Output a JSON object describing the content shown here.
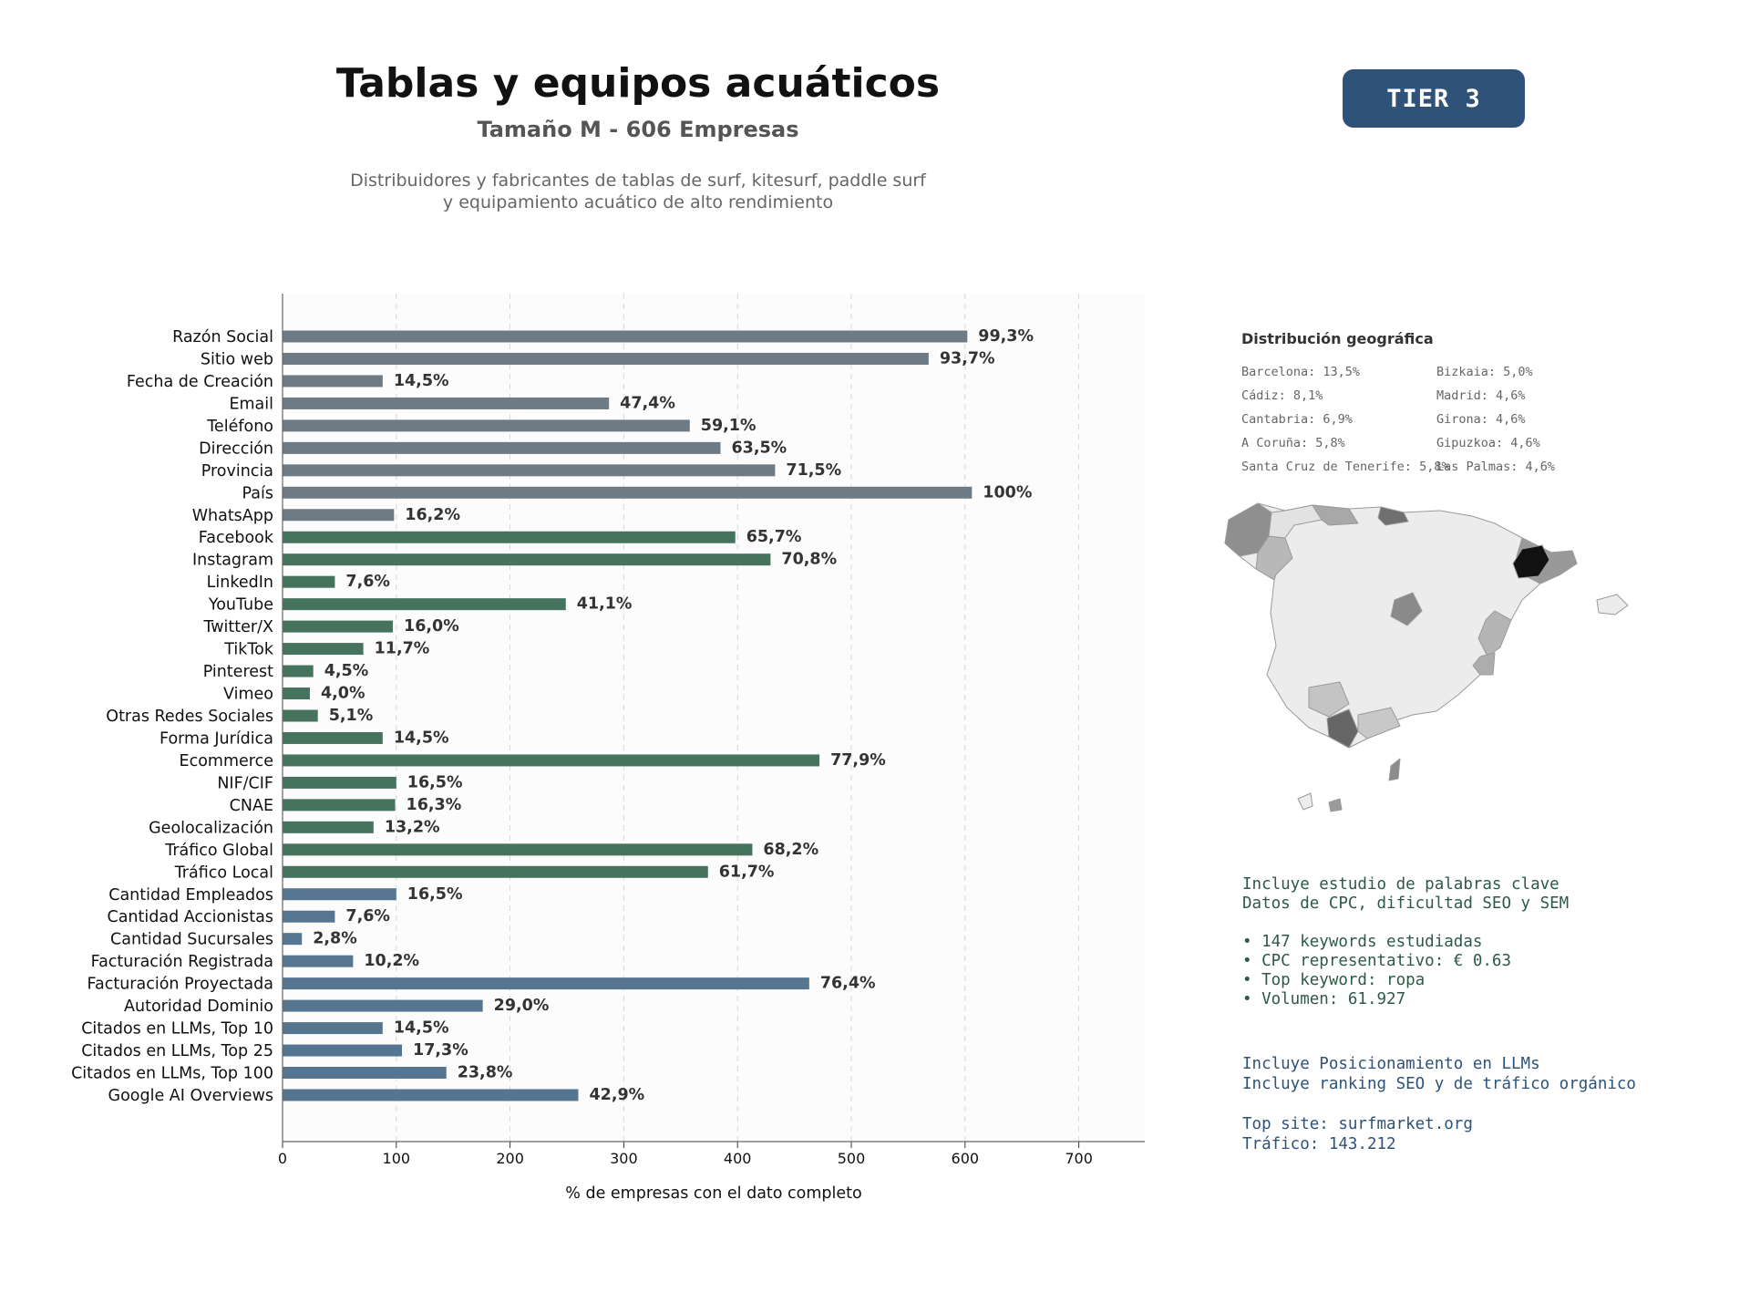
{
  "header": {
    "title": "Tablas y equipos acuáticos",
    "subtitle": "Tamaño M - 606 Empresas",
    "description_line1": "Distribuidores y fabricantes de tablas de surf, kitesurf, paddle surf",
    "description_line2": "y equipamiento acuático de alto rendimiento",
    "tier_badge": "TIER 3"
  },
  "chart_data": {
    "type": "bar",
    "orientation": "horizontal",
    "xlabel": "% de empresas con el dato completo",
    "xlim": [
      0,
      758
    ],
    "xticks": [
      0,
      100,
      200,
      300,
      400,
      500,
      600,
      700
    ],
    "grid": "vertical dashed",
    "colors": {
      "gray": "#6e7a84",
      "green": "#46735e",
      "blue": "#557590"
    },
    "bars": [
      {
        "label": "Razón Social",
        "value": 602,
        "pct": "99,3%",
        "group": "gray"
      },
      {
        "label": "Sitio web",
        "value": 568,
        "pct": "93,7%",
        "group": "gray"
      },
      {
        "label": "Fecha de Creación",
        "value": 88,
        "pct": "14,5%",
        "group": "gray"
      },
      {
        "label": "Email",
        "value": 287,
        "pct": "47,4%",
        "group": "gray"
      },
      {
        "label": "Teléfono",
        "value": 358,
        "pct": "59,1%",
        "group": "gray"
      },
      {
        "label": "Dirección",
        "value": 385,
        "pct": "63,5%",
        "group": "gray"
      },
      {
        "label": "Provincia",
        "value": 433,
        "pct": "71,5%",
        "group": "gray"
      },
      {
        "label": "País",
        "value": 606,
        "pct": "100%",
        "group": "gray"
      },
      {
        "label": "WhatsApp",
        "value": 98,
        "pct": "16,2%",
        "group": "gray"
      },
      {
        "label": "Facebook",
        "value": 398,
        "pct": "65,7%",
        "group": "green"
      },
      {
        "label": "Instagram",
        "value": 429,
        "pct": "70,8%",
        "group": "green"
      },
      {
        "label": "LinkedIn",
        "value": 46,
        "pct": "7,6%",
        "group": "green"
      },
      {
        "label": "YouTube",
        "value": 249,
        "pct": "41,1%",
        "group": "green"
      },
      {
        "label": "Twitter/X",
        "value": 97,
        "pct": "16,0%",
        "group": "green"
      },
      {
        "label": "TikTok",
        "value": 71,
        "pct": "11,7%",
        "group": "green"
      },
      {
        "label": "Pinterest",
        "value": 27,
        "pct": "4,5%",
        "group": "green"
      },
      {
        "label": "Vimeo",
        "value": 24,
        "pct": "4,0%",
        "group": "green"
      },
      {
        "label": "Otras Redes Sociales",
        "value": 31,
        "pct": "5,1%",
        "group": "green"
      },
      {
        "label": "Forma Jurídica",
        "value": 88,
        "pct": "14,5%",
        "group": "green"
      },
      {
        "label": "Ecommerce",
        "value": 472,
        "pct": "77,9%",
        "group": "green"
      },
      {
        "label": "NIF/CIF",
        "value": 100,
        "pct": "16,5%",
        "group": "green"
      },
      {
        "label": "CNAE",
        "value": 99,
        "pct": "16,3%",
        "group": "green"
      },
      {
        "label": "Geolocalización",
        "value": 80,
        "pct": "13,2%",
        "group": "green"
      },
      {
        "label": "Tráfico Global",
        "value": 413,
        "pct": "68,2%",
        "group": "green"
      },
      {
        "label": "Tráfico Local",
        "value": 374,
        "pct": "61,7%",
        "group": "green"
      },
      {
        "label": "Cantidad Empleados",
        "value": 100,
        "pct": "16,5%",
        "group": "blue"
      },
      {
        "label": "Cantidad Accionistas",
        "value": 46,
        "pct": "7,6%",
        "group": "blue"
      },
      {
        "label": "Cantidad Sucursales",
        "value": 17,
        "pct": "2,8%",
        "group": "blue"
      },
      {
        "label": "Facturación Registrada",
        "value": 62,
        "pct": "10,2%",
        "group": "blue"
      },
      {
        "label": "Facturación Proyectada",
        "value": 463,
        "pct": "76,4%",
        "group": "blue"
      },
      {
        "label": "Autoridad Dominio",
        "value": 176,
        "pct": "29,0%",
        "group": "blue"
      },
      {
        "label": "Citados en LLMs, Top 10",
        "value": 88,
        "pct": "14,5%",
        "group": "blue"
      },
      {
        "label": "Citados en LLMs, Top 25",
        "value": 105,
        "pct": "17,3%",
        "group": "blue"
      },
      {
        "label": "Citados en LLMs, Top 100",
        "value": 144,
        "pct": "23,8%",
        "group": "blue"
      },
      {
        "label": "Google AI Overviews",
        "value": 260,
        "pct": "42,9%",
        "group": "blue"
      }
    ]
  },
  "geo": {
    "title": "Distribución geográfica",
    "items": [
      "Barcelona: 13,5%",
      "Bizkaia: 5,0%",
      "Cádiz: 8,1%",
      "Madrid: 4,6%",
      "Cantabria: 6,9%",
      "Girona: 4,6%",
      "A Coruña: 5,8%",
      "Gipuzkoa: 4,6%",
      "Santa Cruz de Tenerife: 5,8%",
      "Las Palmas: 4,6%"
    ]
  },
  "keywords": {
    "line1": "Incluye estudio de palabras clave",
    "line2": "Datos de CPC, dificultad SEO y SEM",
    "bullet1": "• 147 keywords estudiadas",
    "bullet2": "• CPC representativo: € 0.63",
    "bullet3": "• Top keyword: ropa",
    "bullet4": "• Volumen: 61.927"
  },
  "llm": {
    "line1": "Incluye Posicionamiento en LLMs",
    "line2": "Incluye ranking SEO y de tráfico orgánico",
    "top_site": "Top site: surfmarket.org",
    "traffic": "Tráfico: 143.212"
  }
}
